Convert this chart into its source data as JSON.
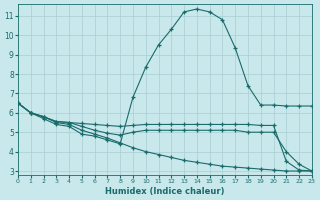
{
  "xlabel": "Humidex (Indice chaleur)",
  "bg_color": "#c8e8ec",
  "line_color": "#1a6b6b",
  "grid_color": "#a8cdd2",
  "xlim": [
    0,
    23
  ],
  "ylim": [
    2.8,
    11.6
  ],
  "xticks": [
    0,
    1,
    2,
    3,
    4,
    5,
    6,
    7,
    8,
    9,
    10,
    11,
    12,
    13,
    14,
    15,
    16,
    17,
    18,
    19,
    20,
    21,
    22,
    23
  ],
  "yticks": [
    3,
    4,
    5,
    6,
    7,
    8,
    9,
    10,
    11
  ],
  "lines": [
    {
      "x": [
        0,
        1,
        2,
        3,
        4,
        5,
        6,
        7,
        8,
        9,
        10,
        11,
        12,
        13,
        14,
        15,
        16,
        17,
        18,
        19,
        20,
        21,
        22,
        23
      ],
      "y": [
        6.5,
        6.0,
        5.7,
        5.4,
        5.3,
        4.9,
        4.8,
        4.6,
        4.4,
        6.8,
        8.35,
        9.5,
        10.3,
        11.2,
        11.35,
        11.2,
        10.8,
        9.35,
        7.4,
        6.4,
        6.4,
        6.35,
        6.35,
        6.35
      ]
    },
    {
      "x": [
        0,
        1,
        2,
        3,
        4,
        5,
        6,
        7,
        8,
        9,
        10,
        11,
        12,
        13,
        14,
        15,
        16,
        17,
        18,
        19,
        20,
        21,
        22,
        23
      ],
      "y": [
        6.5,
        6.0,
        5.8,
        5.55,
        5.5,
        5.45,
        5.4,
        5.35,
        5.3,
        5.35,
        5.4,
        5.4,
        5.4,
        5.4,
        5.4,
        5.4,
        5.4,
        5.4,
        5.4,
        5.35,
        5.35,
        3.5,
        3.05,
        3.0
      ]
    },
    {
      "x": [
        0,
        1,
        2,
        3,
        4,
        5,
        6,
        7,
        8,
        9,
        10,
        11,
        12,
        13,
        14,
        15,
        16,
        17,
        18,
        19,
        20,
        21,
        22,
        23
      ],
      "y": [
        6.5,
        6.0,
        5.8,
        5.55,
        5.5,
        5.3,
        5.1,
        4.95,
        4.85,
        5.0,
        5.1,
        5.1,
        5.1,
        5.1,
        5.1,
        5.1,
        5.1,
        5.1,
        5.0,
        5.0,
        5.0,
        4.0,
        3.35,
        3.0
      ]
    },
    {
      "x": [
        0,
        1,
        2,
        3,
        4,
        5,
        6,
        7,
        8,
        9,
        10,
        11,
        12,
        13,
        14,
        15,
        16,
        17,
        18,
        19,
        20,
        21,
        22,
        23
      ],
      "y": [
        6.5,
        6.0,
        5.8,
        5.5,
        5.4,
        5.1,
        4.9,
        4.7,
        4.45,
        4.2,
        4.0,
        3.85,
        3.7,
        3.55,
        3.45,
        3.35,
        3.25,
        3.2,
        3.15,
        3.1,
        3.05,
        3.0,
        3.0,
        3.0
      ]
    }
  ]
}
